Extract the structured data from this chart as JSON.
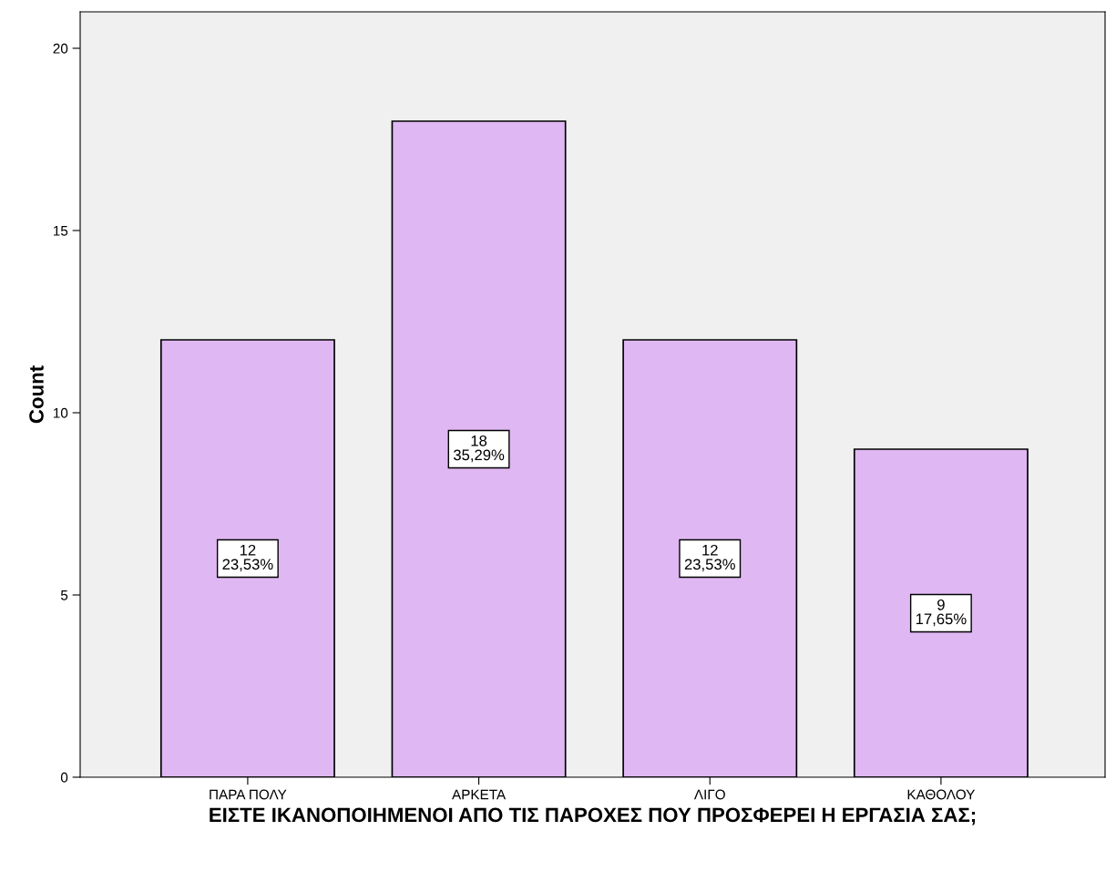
{
  "chart_data": {
    "type": "bar",
    "categories": [
      "ΠΑΡΑ ΠΟΛΥ",
      "ΑΡΚΕΤΑ",
      "ΛΙΓΟ",
      "ΚΑΘΟΛΟΥ"
    ],
    "values": [
      12,
      18,
      12,
      9
    ],
    "value_labels": [
      "12\n23,53%",
      "18\n35,29%",
      "12\n23,53%",
      "9\n17,65%"
    ],
    "color": "#dfb7f2",
    "xlabel": "ΕΙΣΤΕ ΙΚΑΝΟΠΟΙΗΜΕΝΟΙ ΑΠΟ ΤΙΣ ΠΑΡΟΧΕΣ ΠΟΥ ΠΡΟΣΦΕΡΕΙ Η ΕΡΓΑΣΙΑ ΣΑΣ;",
    "ylabel": "Count",
    "ylim": [
      0,
      21
    ],
    "yticks": [
      0,
      5,
      10,
      15,
      20
    ],
    "grid": false,
    "legend": false
  }
}
